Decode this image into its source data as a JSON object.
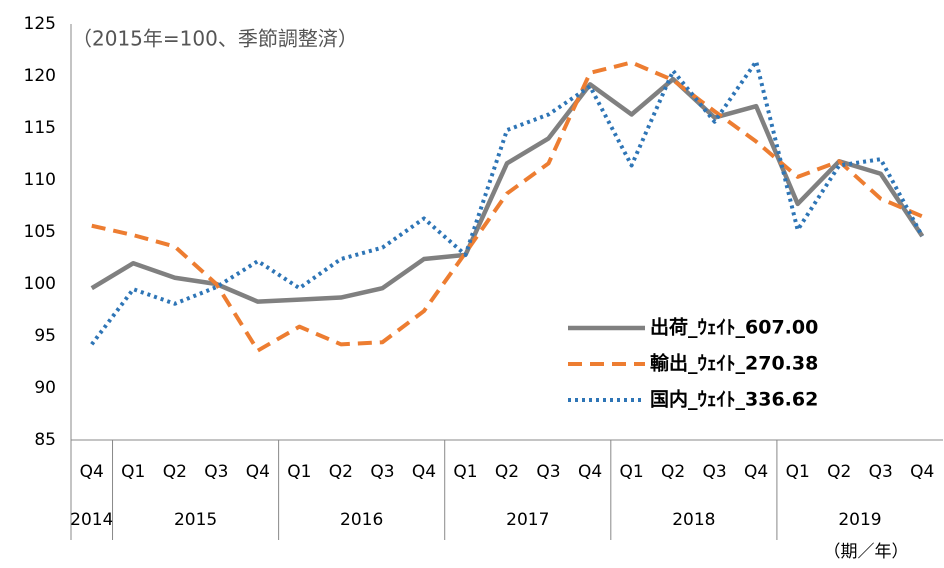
{
  "chart_data": {
    "type": "line",
    "subtitle": "（2015年=100、季節調整済）",
    "x_unit_label": "（期／年）",
    "groups": [
      {
        "label": "2014",
        "categories": [
          "Q4"
        ]
      },
      {
        "label": "2015",
        "categories": [
          "Q1",
          "Q2",
          "Q3",
          "Q4"
        ]
      },
      {
        "label": "2016",
        "categories": [
          "Q1",
          "Q2",
          "Q3",
          "Q4"
        ]
      },
      {
        "label": "2017",
        "categories": [
          "Q1",
          "Q2",
          "Q3",
          "Q4"
        ]
      },
      {
        "label": "2018",
        "categories": [
          "Q1",
          "Q2",
          "Q3",
          "Q4"
        ]
      },
      {
        "label": "2019",
        "categories": [
          "Q1",
          "Q2",
          "Q3",
          "Q4"
        ]
      }
    ],
    "series": [
      {
        "name": "出荷_ｳｪｲﾄ_607.00",
        "color": "#808080",
        "style": "solid",
        "values": [
          99.6,
          102.0,
          100.6,
          100.0,
          98.3,
          98.5,
          98.7,
          99.6,
          102.4,
          102.8,
          111.6,
          114.0,
          119.2,
          116.3,
          119.7,
          116.0,
          117.1,
          107.7,
          111.8,
          110.6,
          104.6
        ]
      },
      {
        "name": "輸出_ｳｪｲﾄ_270.38",
        "color": "#ed7d31",
        "style": "dashed",
        "values": [
          105.6,
          104.7,
          103.6,
          100.0,
          93.6,
          95.9,
          94.2,
          94.4,
          97.4,
          103.0,
          108.7,
          111.6,
          120.3,
          121.3,
          119.6,
          116.6,
          113.7,
          110.3,
          111.8,
          108.2,
          106.5
        ]
      },
      {
        "name": "国内_ｳｪｲﾄ_336.62",
        "color": "#2e75b6",
        "style": "dotted",
        "values": [
          94.2,
          99.5,
          98.1,
          99.7,
          102.2,
          99.6,
          102.4,
          103.5,
          106.3,
          102.8,
          114.8,
          116.3,
          119.0,
          111.4,
          120.5,
          115.6,
          121.4,
          105.2,
          111.4,
          112.0,
          104.6
        ]
      }
    ],
    "ylim": [
      85,
      125
    ],
    "yticks": [
      85,
      90,
      95,
      100,
      105,
      110,
      115,
      120,
      125
    ],
    "grid": false
  }
}
